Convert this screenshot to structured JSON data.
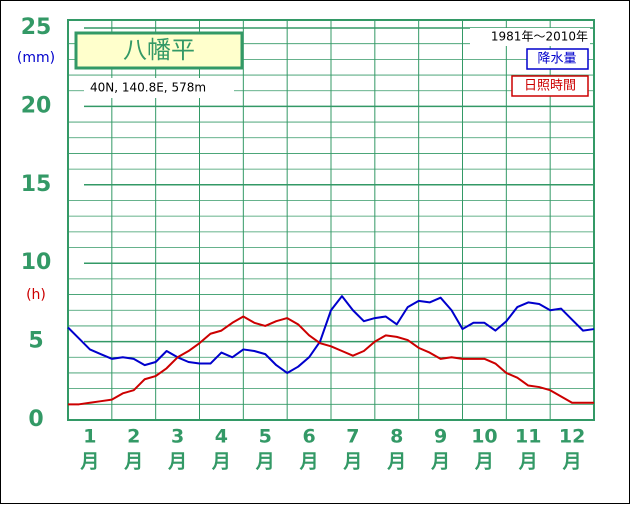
{
  "chart_data": {
    "type": "line",
    "title": "八幡平",
    "subtitle": "40N, 140.8E, 578m",
    "period": "1981年〜2010年",
    "y_label": "(mm)",
    "y_label_2": "(h)",
    "categories": [
      "1",
      "2",
      "3",
      "4",
      "5",
      "6",
      "7",
      "8",
      "9",
      "10",
      "11",
      "12"
    ],
    "month_suffix": "月",
    "x": [
      0,
      0.25,
      0.5,
      0.75,
      1,
      1.25,
      1.5,
      1.75,
      2,
      2.25,
      2.5,
      2.75,
      3,
      3.25,
      3.5,
      3.75,
      4,
      4.25,
      4.5,
      4.75,
      5,
      5.25,
      5.5,
      5.75,
      6,
      6.25,
      6.5,
      6.75,
      7,
      7.25,
      7.5,
      7.75,
      8,
      8.25,
      8.5,
      8.75,
      9,
      9.25,
      9.5,
      9.75,
      10,
      10.25,
      10.5,
      10.75,
      11,
      11.25,
      11.5,
      11.75,
      12
    ],
    "xlim": [
      0,
      12
    ],
    "ylim": [
      0,
      25
    ],
    "yticks": [
      0,
      5,
      10,
      15,
      20,
      25
    ],
    "grid": true,
    "series": [
      {
        "name": "降水量",
        "color": "#0000cc",
        "values": [
          5.9,
          5.2,
          4.5,
          4.2,
          3.9,
          4.0,
          3.9,
          3.5,
          3.7,
          4.4,
          4.0,
          3.7,
          3.6,
          3.6,
          4.3,
          4.0,
          4.5,
          4.4,
          4.2,
          3.5,
          3.0,
          3.4,
          4.0,
          5.0,
          7.0,
          7.9,
          7.0,
          6.3,
          6.5,
          6.6,
          6.1,
          7.2,
          7.6,
          7.5,
          7.8,
          7.0,
          5.8,
          6.2,
          6.2,
          5.7,
          6.3,
          7.2,
          7.5,
          7.4,
          7.0,
          7.1,
          6.4,
          5.7,
          5.8
        ]
      },
      {
        "name": "日照時間",
        "color": "#cc0000",
        "values": [
          1.0,
          1.0,
          1.1,
          1.2,
          1.3,
          1.7,
          1.9,
          2.6,
          2.8,
          3.3,
          4.0,
          4.4,
          4.9,
          5.5,
          5.7,
          6.2,
          6.6,
          6.2,
          6.0,
          6.3,
          6.5,
          6.1,
          5.4,
          4.9,
          4.7,
          4.4,
          4.1,
          4.4,
          5.0,
          5.4,
          5.3,
          5.1,
          4.6,
          4.3,
          3.9,
          4.0,
          3.9,
          3.9,
          3.9,
          3.6,
          3.0,
          2.7,
          2.2,
          2.1,
          1.9,
          1.5,
          1.1,
          1.1,
          1.1
        ]
      }
    ]
  }
}
